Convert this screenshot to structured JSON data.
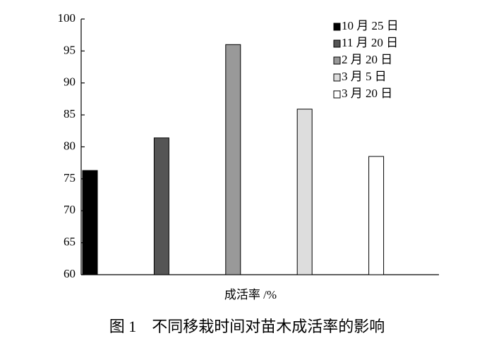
{
  "chart_data": {
    "type": "bar",
    "title": "图 1　不同移栽时间对苗木成活率的影响",
    "x_label": "成活率 /%",
    "categories": [
      null
    ],
    "series": [
      {
        "name": "10 月 25 日",
        "color": "#000000",
        "values": [
          76.3
        ]
      },
      {
        "name": "11 月 20 日",
        "color": "#555555",
        "values": [
          81.4
        ]
      },
      {
        "name": "2 月 20 日",
        "color": "#999999",
        "values": [
          96
        ]
      },
      {
        "name": "3 月 5 日",
        "color": "#dddddd",
        "values": [
          85.9
        ]
      },
      {
        "name": "3 月 20 日",
        "color": "#ffffff",
        "values": [
          78.5
        ]
      }
    ],
    "ylim": [
      60,
      100
    ],
    "yticks": [
      60,
      65,
      70,
      75,
      80,
      85,
      90,
      95,
      100
    ],
    "legend": "top-right"
  }
}
